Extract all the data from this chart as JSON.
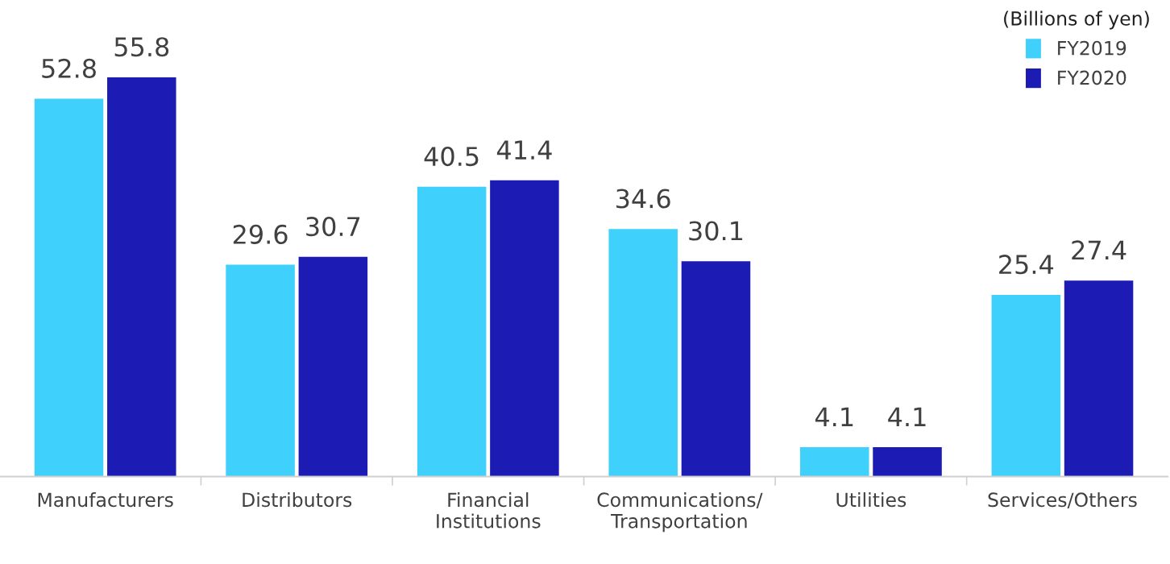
{
  "chart_data": {
    "type": "bar",
    "categories": [
      "Manufacturers",
      "Distributors",
      "Financial\nInstitutions",
      "Communications/\nTransportation",
      "Utilities",
      "Services/Others"
    ],
    "series": [
      {
        "name": "FY2019",
        "color": "#3fd0fb",
        "values": [
          52.8,
          29.6,
          40.5,
          34.6,
          4.1,
          25.4
        ]
      },
      {
        "name": "FY2020",
        "color": "#1c1cb4",
        "values": [
          55.8,
          30.7,
          41.4,
          30.1,
          4.1,
          27.4
        ]
      }
    ],
    "legend_title": "(Billions of yen)",
    "legend": "top right",
    "data_labels": true,
    "tick_labels": "x"
  }
}
